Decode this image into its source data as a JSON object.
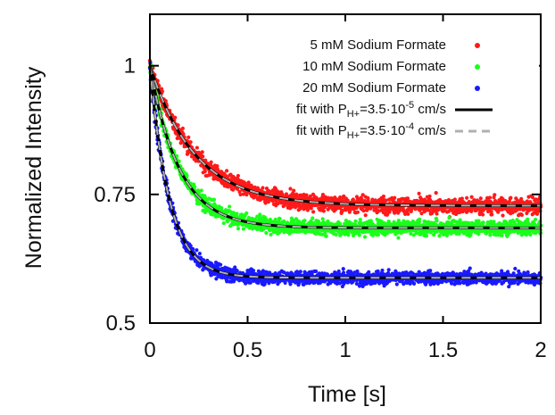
{
  "chart_data": {
    "type": "scatter",
    "title": "",
    "xlabel": "Time [s]",
    "ylabel": "Normalized Intensity",
    "xlim": [
      0,
      2
    ],
    "ylim": [
      0.5,
      1.1
    ],
    "x_ticks": [
      "0",
      "0.5",
      "1",
      "1.5",
      "2"
    ],
    "y_ticks": [
      "0.5",
      "0.75",
      "1"
    ],
    "x_tick_values": [
      0,
      0.5,
      1,
      1.5,
      2
    ],
    "y_tick_values": [
      0.5,
      0.75,
      1
    ],
    "grid": false,
    "legend_position": "top-right",
    "series": [
      {
        "name": "5 mM Sodium Formate",
        "kind": "points",
        "color": "#ff1a1a",
        "plateau": 0.728,
        "tau": 0.23,
        "spread": 0.025,
        "noise": 0.012
      },
      {
        "name": "10 mM Sodium Formate",
        "kind": "points",
        "color": "#1aff1a",
        "plateau": 0.685,
        "tau": 0.15,
        "spread": 0.02,
        "noise": 0.012
      },
      {
        "name": "20 mM Sodium Formate",
        "kind": "points",
        "color": "#1a1aff",
        "plateau": 0.588,
        "tau": 0.1,
        "spread": 0.015,
        "noise": 0.011
      }
    ],
    "fits": [
      {
        "name_main": "fit with P",
        "name_sub": "H+",
        "name_tail": "=3.5·10",
        "name_exp": "-5",
        "name_unit": " cm/s",
        "color": "#000000",
        "style": "solid"
      },
      {
        "name_main": "fit with P",
        "name_sub": "H+",
        "name_tail": "=3.5·10",
        "name_exp": "-4",
        "name_unit": " cm/s",
        "color": "#b0b0b0",
        "style": "dashed"
      }
    ]
  }
}
